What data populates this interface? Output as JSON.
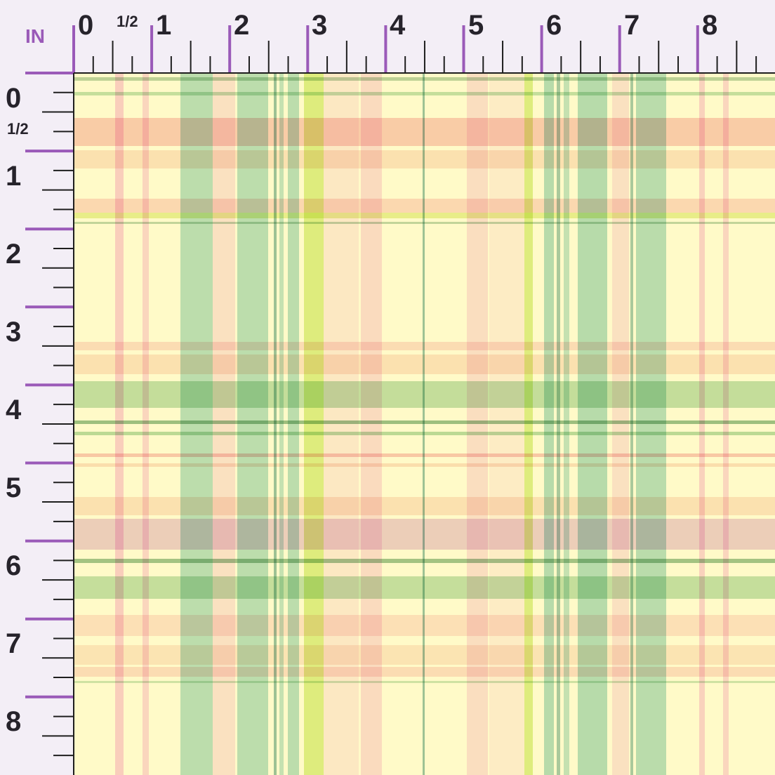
{
  "ruler": {
    "unit_label": "IN",
    "top_labels": [
      "0",
      "1/2",
      "1",
      "2",
      "3",
      "4",
      "5",
      "6",
      "7",
      "8"
    ],
    "left_labels": [
      "0",
      "1/2",
      "1",
      "2",
      "3",
      "4",
      "5",
      "6",
      "7",
      "8"
    ],
    "tick_color": "#1e1e1e",
    "major_tick_color": "#9a5ab8"
  },
  "swatch": {
    "pattern": "pastel plaid",
    "background_color": "#fffac8",
    "palette": {
      "green": "#9fd0a0",
      "pink": "#f4aab0",
      "lavender": "#d9a6d8",
      "yellow_green": "#d6e86a",
      "peach": "#f6c7b8",
      "dark_green": "#86b487"
    }
  }
}
